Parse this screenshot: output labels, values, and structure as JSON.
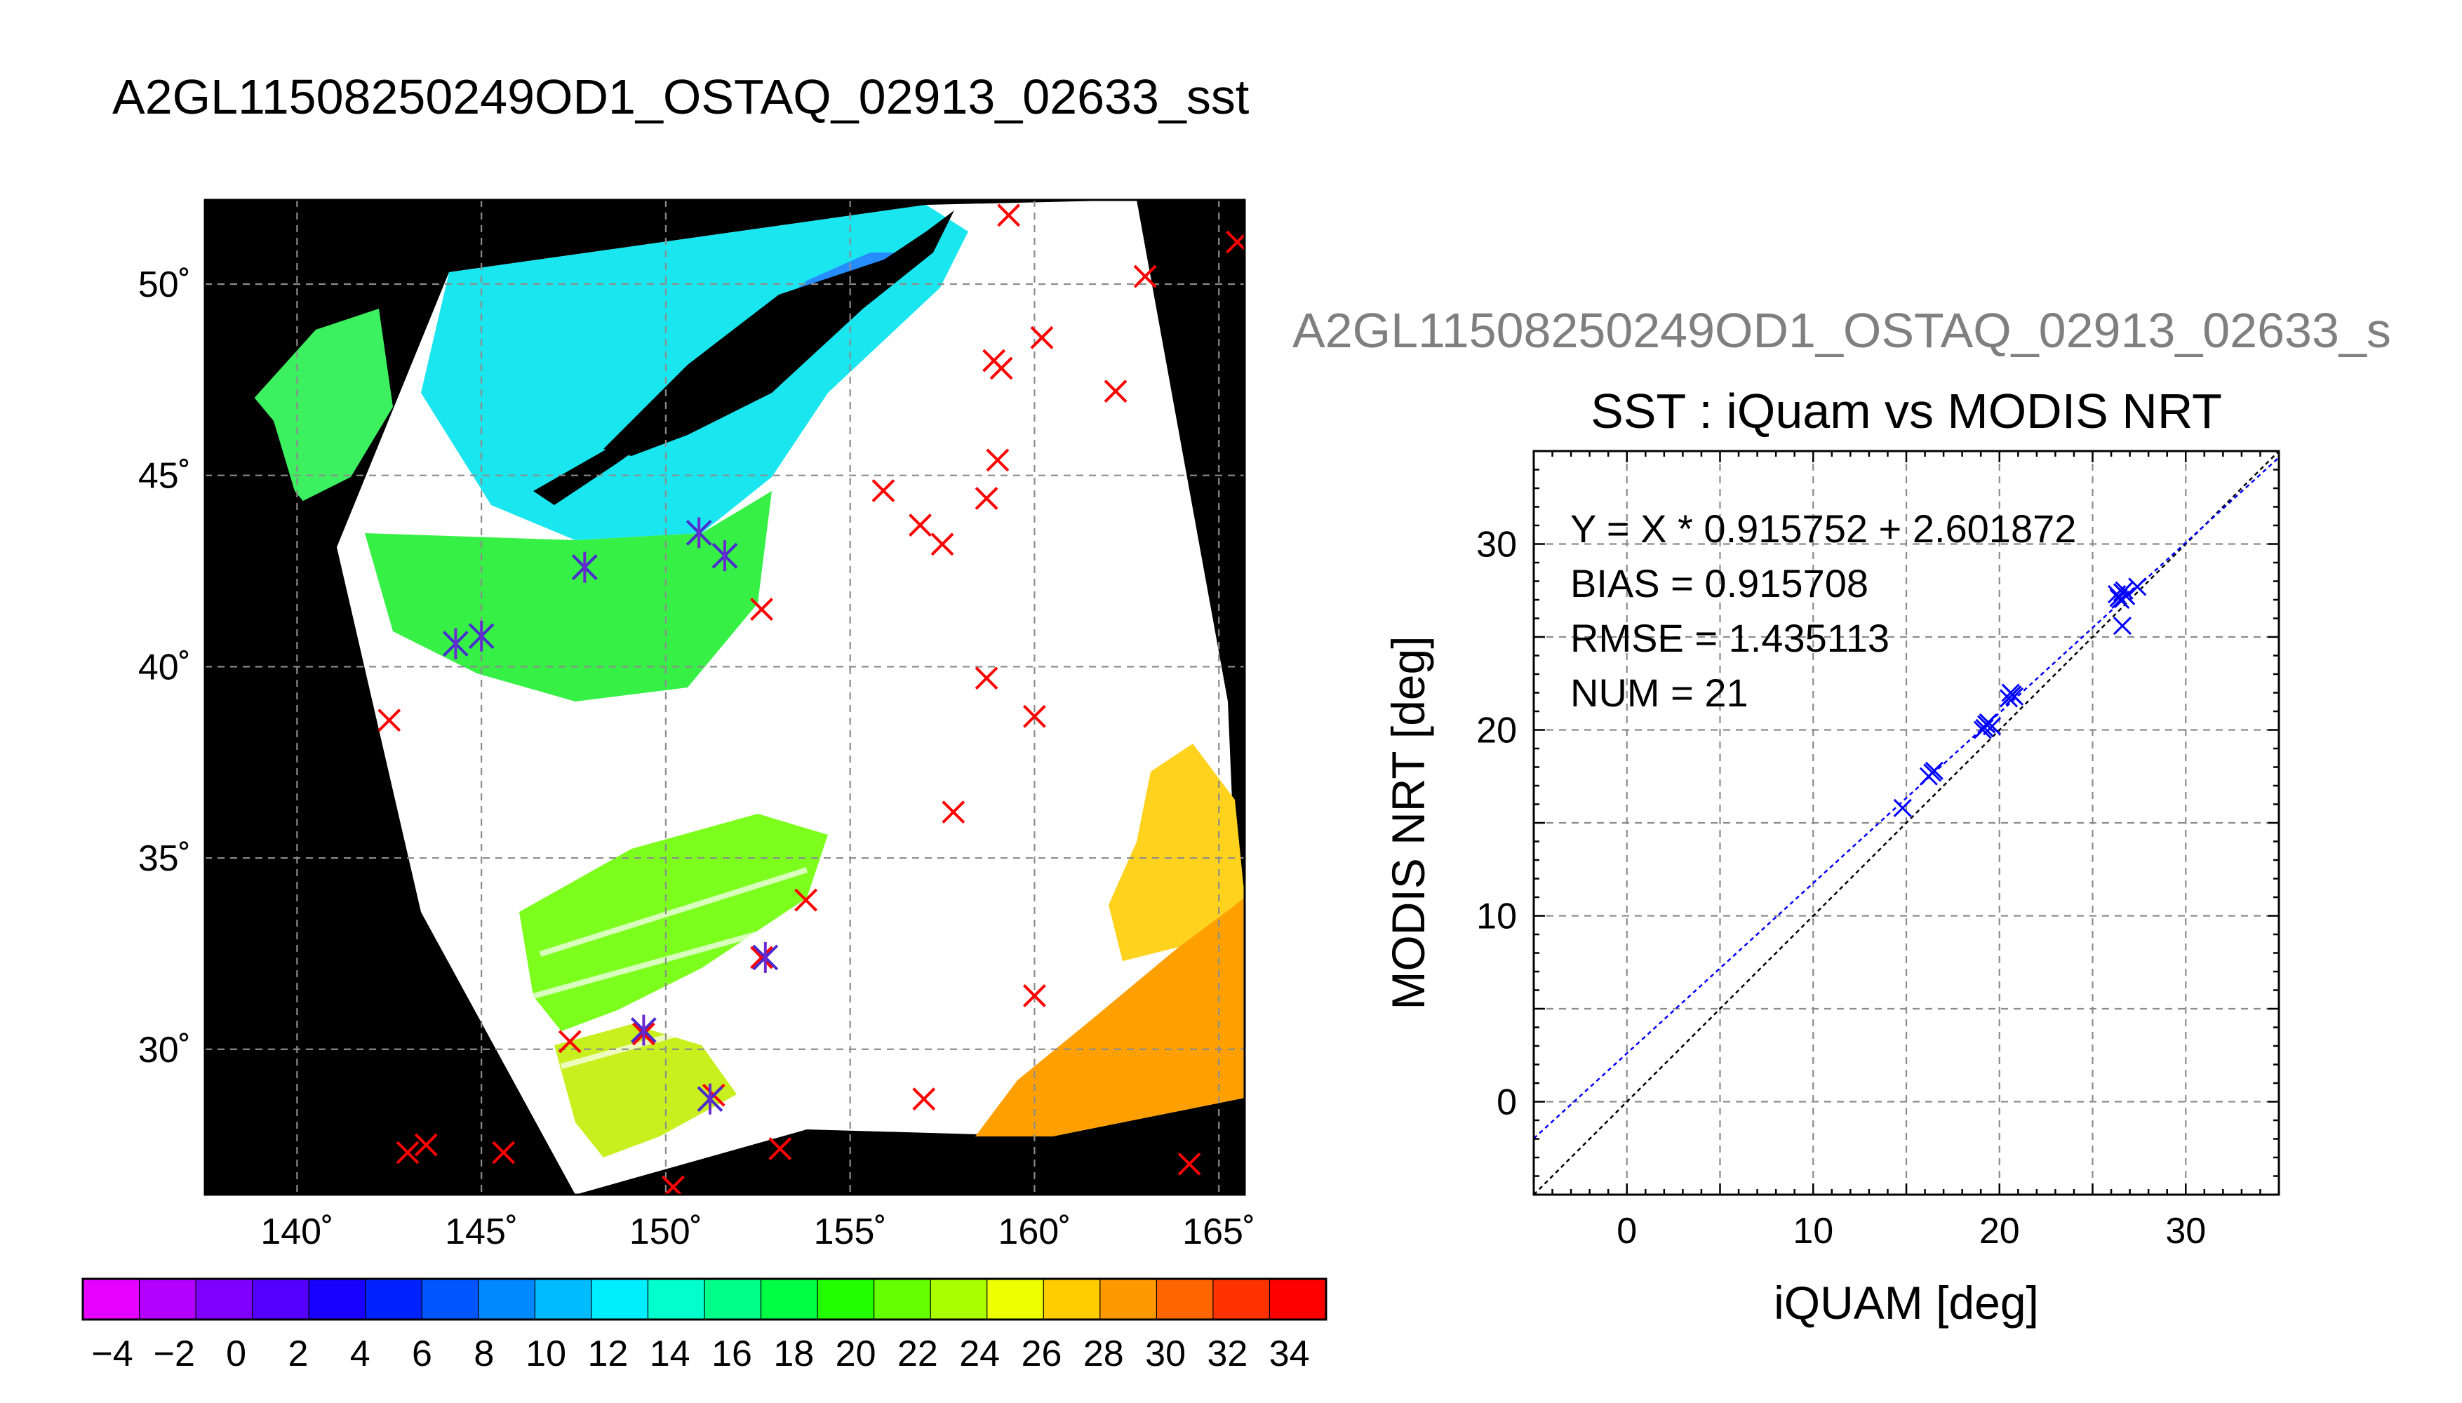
{
  "main_title": "A2GL11508250249OD1_OSTAQ_02913_02633_sst",
  "map": {
    "lon_ticks": [
      "140˚",
      "145˚",
      "150˚",
      "155˚",
      "160˚",
      "165˚"
    ],
    "lat_ticks": [
      "30˚",
      "35˚",
      "40˚",
      "45˚",
      "50˚"
    ],
    "lon_range": [
      137.5,
      165.7
    ],
    "lat_range": [
      26.2,
      52.2
    ],
    "colorbar_labels": [
      "−4",
      "−2",
      "0",
      "2",
      "4",
      "6",
      "8",
      "10",
      "12",
      "14",
      "16",
      "18",
      "20",
      "22",
      "24",
      "26",
      "28",
      "30",
      "32",
      "34"
    ],
    "colorbar_colors": [
      "#e600ff",
      "#b300ff",
      "#7f00ff",
      "#5500ff",
      "#1a00ff",
      "#0022ff",
      "#0055ff",
      "#0088ff",
      "#00bbff",
      "#00eeff",
      "#00ffcc",
      "#00ff88",
      "#00ff44",
      "#22ff00",
      "#66ff00",
      "#aaff00",
      "#eeff00",
      "#ffcc00",
      "#ff9900",
      "#ff6600",
      "#ff3300",
      "#ff0000"
    ],
    "red_markers": [
      [
        165.5,
        51.1
      ],
      [
        159.3,
        51.8
      ],
      [
        163.0,
        50.2
      ],
      [
        160.2,
        48.6
      ],
      [
        158.9,
        48.0
      ],
      [
        159.1,
        47.8
      ],
      [
        162.2,
        47.2
      ],
      [
        155.9,
        44.6
      ],
      [
        159.0,
        45.4
      ],
      [
        156.9,
        43.7
      ],
      [
        158.7,
        44.4
      ],
      [
        157.5,
        43.2
      ],
      [
        152.6,
        41.5
      ],
      [
        158.7,
        39.7
      ],
      [
        160.0,
        38.7
      ],
      [
        142.5,
        38.6
      ],
      [
        157.8,
        36.2
      ],
      [
        153.8,
        33.9
      ],
      [
        152.6,
        32.4
      ],
      [
        147.4,
        30.2
      ],
      [
        149.4,
        30.4
      ],
      [
        160.0,
        31.4
      ],
      [
        151.3,
        28.8
      ],
      [
        157.0,
        28.7
      ],
      [
        143.0,
        27.3
      ],
      [
        143.5,
        27.5
      ],
      [
        145.6,
        27.3
      ],
      [
        153.1,
        27.4
      ],
      [
        150.2,
        26.4
      ],
      [
        164.2,
        27.0
      ]
    ],
    "purple_markers": [
      [
        147.8,
        42.6
      ],
      [
        150.9,
        43.5
      ],
      [
        151.6,
        42.9
      ],
      [
        144.3,
        40.6
      ],
      [
        145.0,
        40.8
      ],
      [
        149.4,
        30.5
      ],
      [
        152.7,
        32.4
      ],
      [
        151.2,
        28.7
      ]
    ]
  },
  "scatter_title_gray": "A2GL11508250249OD1_OSTAQ_02913_02633_s",
  "chart_data": {
    "type": "scatter",
    "title": "SST : iQuam vs MODIS NRT",
    "xlabel": "iQUAM [deg]",
    "ylabel": "MODIS NRT [deg]",
    "xlim": [
      -5,
      35
    ],
    "ylim": [
      -5,
      35
    ],
    "xticks": [
      0,
      10,
      20,
      30
    ],
    "yticks": [
      0,
      10,
      20,
      30
    ],
    "grid": true,
    "stats": {
      "equation": "Y = X * 0.915752 + 2.601872",
      "bias": "BIAS = 0.915708",
      "rmse": "RMSE = 1.435113",
      "num": "NUM = 21"
    },
    "fit": {
      "slope": 0.915752,
      "intercept": 2.601872
    },
    "points": [
      [
        14.8,
        15.8
      ],
      [
        16.2,
        17.5
      ],
      [
        16.4,
        17.7
      ],
      [
        16.5,
        17.8
      ],
      [
        19.1,
        20.0
      ],
      [
        19.2,
        20.1
      ],
      [
        19.3,
        20.3
      ],
      [
        19.4,
        20.4
      ],
      [
        19.6,
        20.2
      ],
      [
        20.5,
        21.7
      ],
      [
        20.6,
        22.0
      ],
      [
        20.7,
        21.9
      ],
      [
        20.8,
        21.8
      ],
      [
        26.3,
        27.3
      ],
      [
        26.4,
        27.1
      ],
      [
        26.5,
        27.0
      ],
      [
        26.6,
        27.4
      ],
      [
        26.7,
        27.5
      ],
      [
        26.8,
        27.2
      ],
      [
        26.6,
        25.6
      ],
      [
        27.4,
        27.7
      ]
    ]
  }
}
